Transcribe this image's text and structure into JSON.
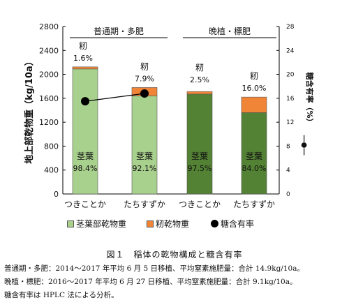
{
  "chart_data": {
    "type": "bar",
    "stacked": true,
    "categories": [
      "つきことか",
      "たちすずか",
      "つきことか",
      "たちすずか"
    ],
    "groups": [
      {
        "label": "普通期・多肥",
        "categories": [
          0,
          1
        ]
      },
      {
        "label": "晩植・標肥",
        "categories": [
          2,
          3
        ]
      }
    ],
    "series": [
      {
        "name": "茎葉部乾物重",
        "colors": [
          "#a9d18e",
          "#a9d18e",
          "#548235",
          "#548235"
        ],
        "values": [
          2090,
          1640,
          1670,
          1360
        ],
        "labels": [
          "茎葉\n98.4%",
          "茎葉\n92.1%",
          "茎葉\n97.5%",
          "茎葉\n84.0%"
        ]
      },
      {
        "name": "籾乾物重",
        "color": "#f08537",
        "values": [
          35,
          140,
          43,
          260
        ],
        "labels": [
          "籾\n1.6%",
          "籾\n7.9%",
          "籾\n2.5%",
          "籾\n16.0%"
        ]
      }
    ],
    "sugar_series": {
      "name": "糖含有率",
      "values": [
        15.5,
        16.8
      ],
      "categories": [
        0,
        1
      ],
      "color": "#000000"
    },
    "ylabel": "地上部乾物重（kg/10a）",
    "y2label": "糖含有率（%）",
    "y2label_marker": "―●―",
    "ylim": [
      0,
      2800
    ],
    "y2lim": [
      0,
      28
    ],
    "yticks": [
      0,
      400,
      800,
      1200,
      1600,
      2000,
      2400,
      2800
    ],
    "y2ticks": [
      0,
      4,
      8,
      12,
      16,
      20,
      24,
      28
    ],
    "grid": false
  },
  "legend": {
    "stem": "茎葉部乾物重",
    "panicle": "籾乾物重",
    "sugar": "糖含有率",
    "colors": {
      "stem_light": "#a9d18e",
      "stem_dark": "#548235",
      "panicle": "#f08537"
    }
  },
  "caption": "図１　稲体の乾物構成と糖含有率",
  "notes": [
    "普通期・多肥：2014～2017 年平均 6 月 5 日移植、平均窒素施肥量：合計 14.9kg/10a。",
    "晩植・標肥：2016～2017 年平均 6 月 27 日移植、平均窒素施肥量：合計 9.1kg/10a。",
    "糖含有率は HPLC 法による分析。"
  ]
}
